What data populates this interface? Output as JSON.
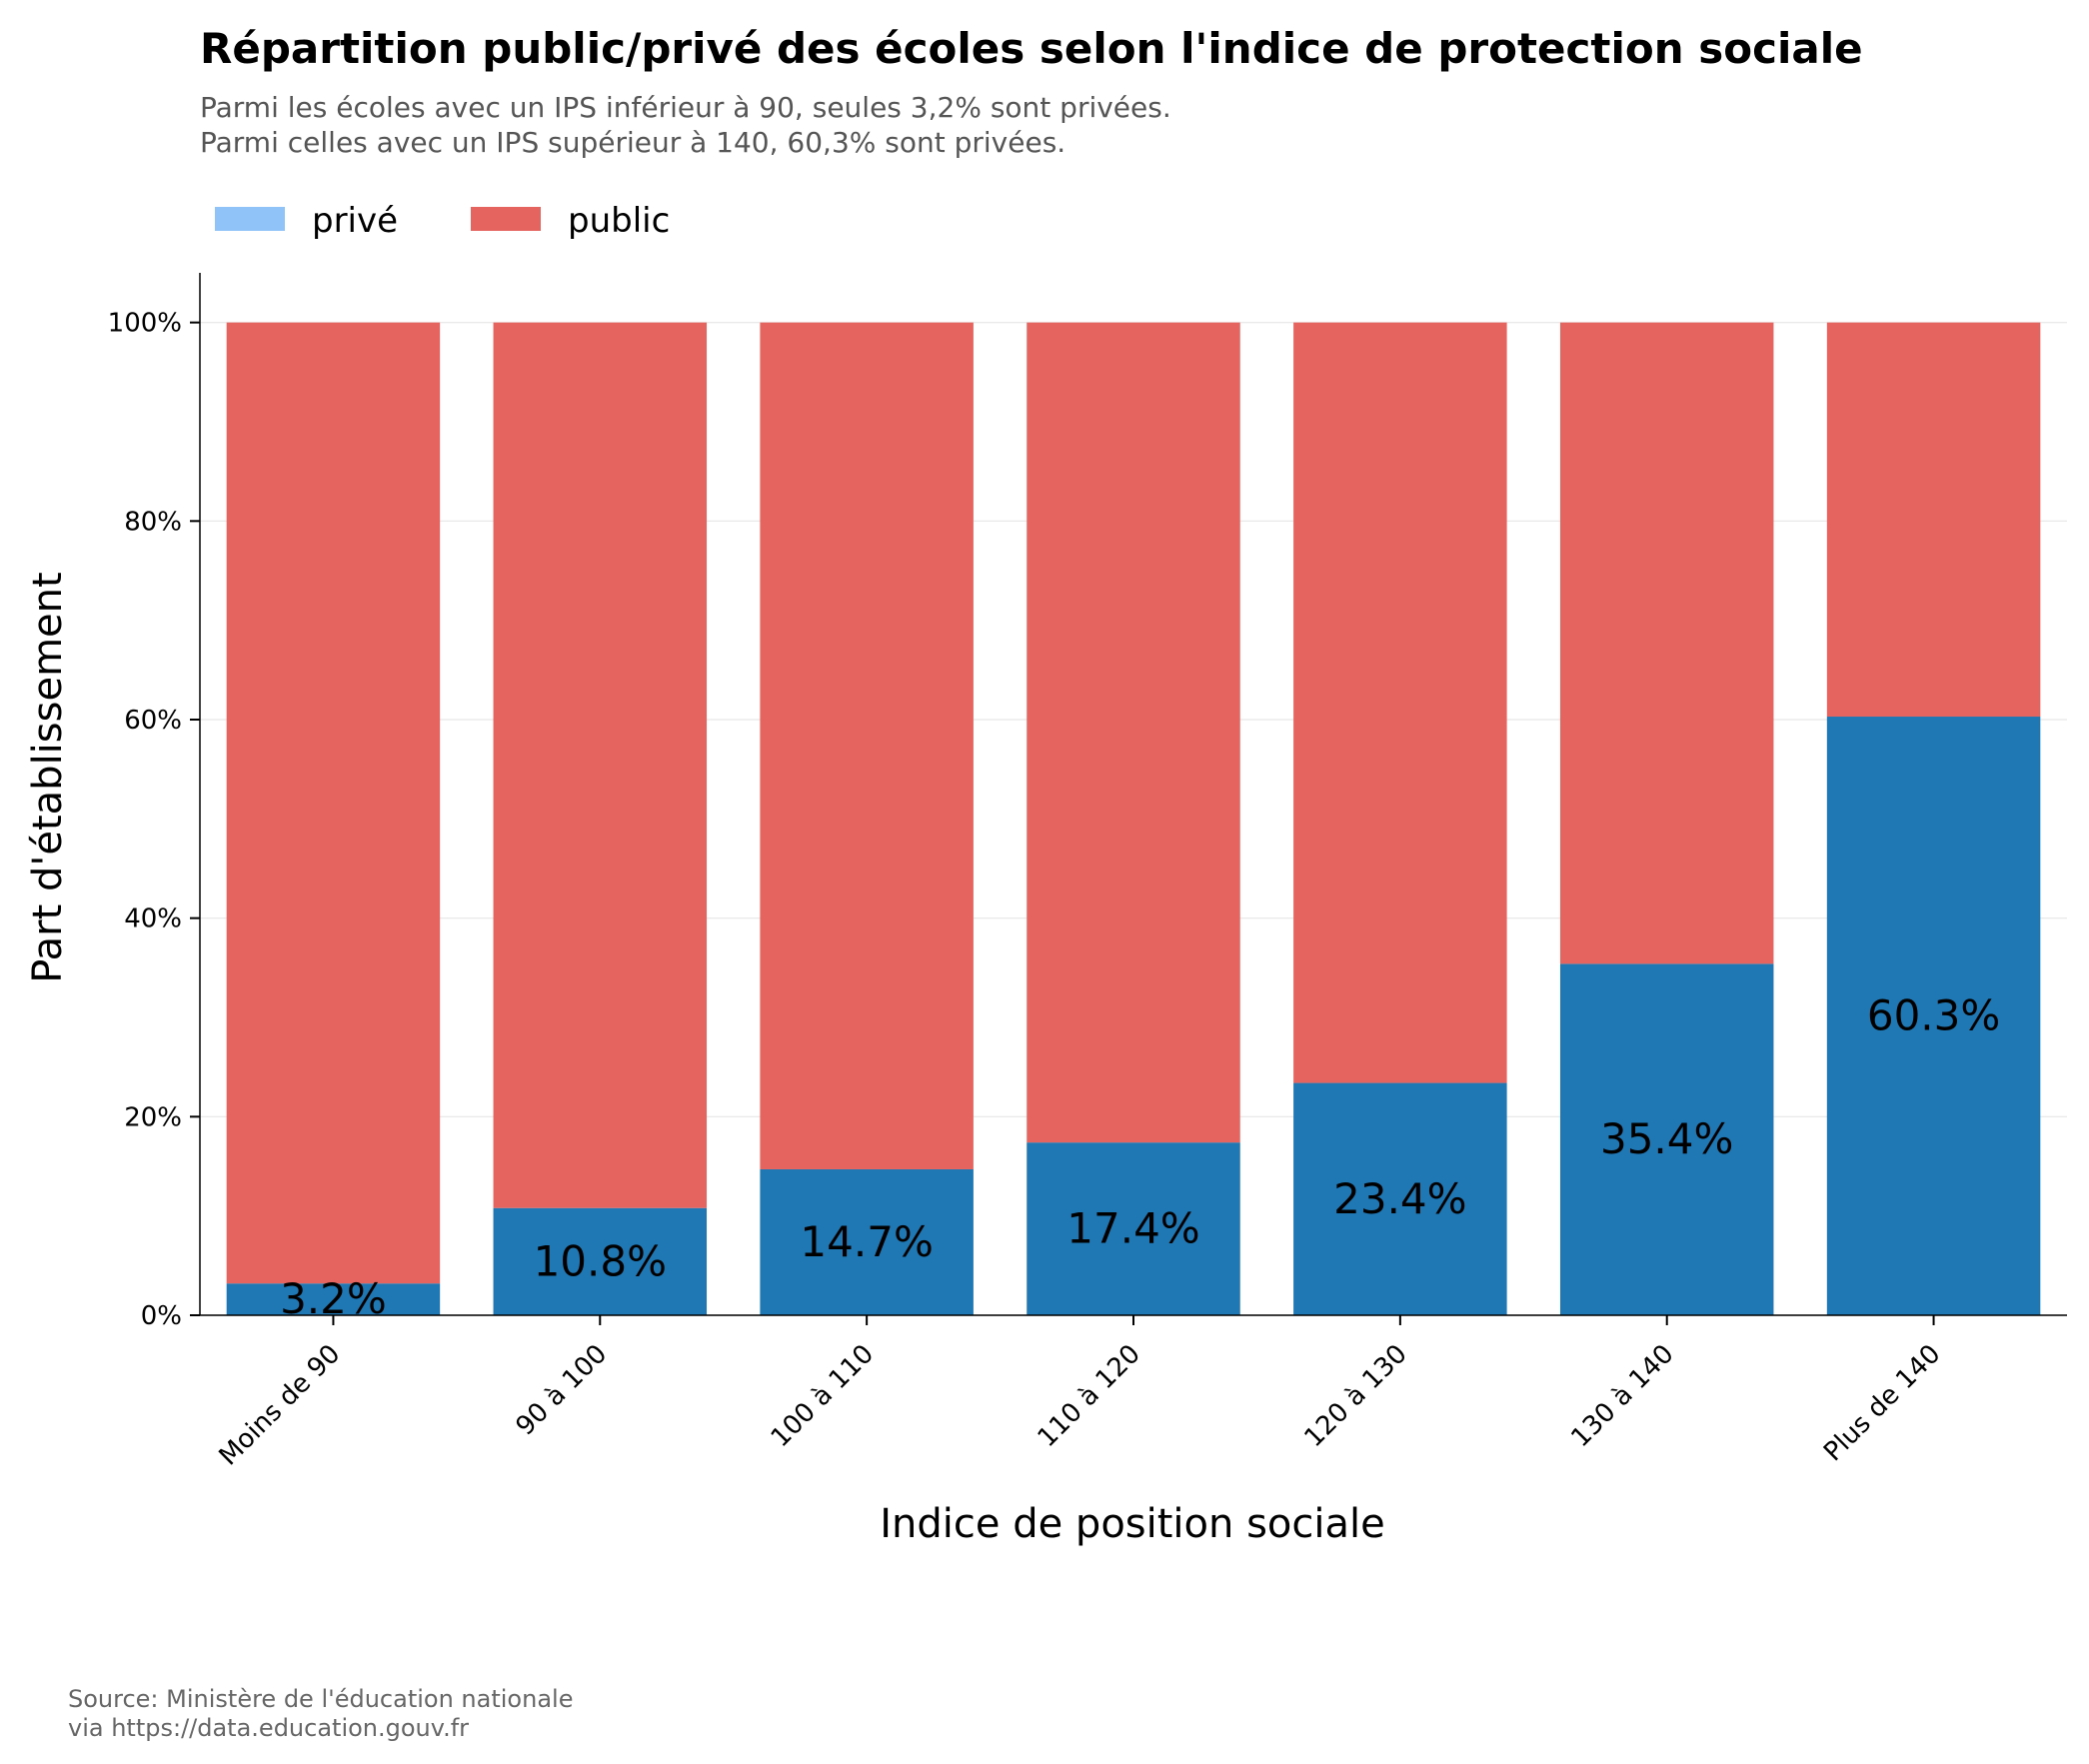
{
  "chart_data": {
    "type": "bar",
    "stacked": true,
    "title": "Répartition public/privé des écoles selon l'indice de protection sociale",
    "subtitle_lines": [
      "Parmi les écoles avec un IPS inférieur à 90, seules 3,2% sont privées.",
      "Parmi celles avec un IPS supérieur à 140, 60,3% sont privées."
    ],
    "xlabel": "Indice de position sociale",
    "ylabel": "Part d'établissement",
    "categories": [
      "Moins de 90",
      "90 à 100",
      "100 à 110",
      "110 à 120",
      "120 à 130",
      "130 à 140",
      "Plus de 140"
    ],
    "series": [
      {
        "name": "privé",
        "values": [
          3.2,
          10.8,
          14.7,
          17.4,
          23.4,
          35.4,
          60.3
        ],
        "color": "#1f77b4",
        "legend_color": "#90c4f9"
      },
      {
        "name": "public",
        "values": [
          96.8,
          89.2,
          85.3,
          82.6,
          76.6,
          64.6,
          39.7
        ],
        "color": "#e6645f"
      }
    ],
    "data_labels": [
      "3.2%",
      "10.8%",
      "14.7%",
      "17.4%",
      "23.4%",
      "35.4%",
      "60.3%"
    ],
    "yticks": [
      "0%",
      "20%",
      "40%",
      "60%",
      "80%",
      "100%"
    ],
    "ytick_values": [
      0,
      20,
      40,
      60,
      80,
      100
    ],
    "ylim": [
      0,
      105
    ],
    "grid": true,
    "legend_position": "top-left",
    "source_lines": [
      "Source: Ministère de l'éducation nationale",
      "via https://data.education.gouv.fr"
    ]
  }
}
